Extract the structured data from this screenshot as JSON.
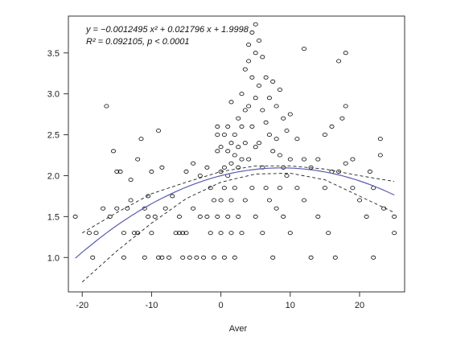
{
  "chart_data": {
    "type": "scatter",
    "title": "",
    "xlabel": "Aver",
    "ylabel": "",
    "xlim": [
      -22,
      26.5
    ],
    "ylim": [
      0.58,
      3.95
    ],
    "xticks": [
      -20,
      -10,
      0,
      10,
      20
    ],
    "yticks": [
      1.0,
      1.5,
      2.0,
      2.5,
      3.0,
      3.5
    ],
    "xtick_labels": [
      "-20",
      "-10",
      "0",
      "10",
      "20"
    ],
    "ytick_labels": [
      "1.0",
      "1.5",
      "2.0",
      "2.5",
      "3.0",
      "3.5"
    ],
    "grid": false,
    "legend": "none",
    "annotations": [
      "y = −0.0012495 x² + 0.021796 x + 1.9998",
      "R² = 0.092105,  p < 0.0001"
    ],
    "fit": {
      "a": -0.0012495,
      "b": 0.021796,
      "c": 1.9998,
      "color": "#5b5bb0"
    },
    "confidence_band": {
      "x": [
        -20,
        -15,
        -10,
        -5,
        0,
        5,
        10,
        15,
        20,
        25
      ],
      "upper": [
        1.3,
        1.55,
        1.78,
        1.92,
        2.05,
        2.12,
        2.12,
        2.08,
        2.0,
        1.93
      ],
      "lower": [
        0.7,
        1.08,
        1.42,
        1.72,
        1.92,
        2.02,
        2.03,
        1.95,
        1.75,
        1.55
      ]
    },
    "series": [
      {
        "marker": "open-circle",
        "color": "#000000",
        "points": [
          [
            -21,
            1.5
          ],
          [
            -19,
            1.3
          ],
          [
            -18.5,
            1.0
          ],
          [
            -18,
            1.3
          ],
          [
            -17,
            1.6
          ],
          [
            -16.5,
            2.85
          ],
          [
            -16,
            1.5
          ],
          [
            -15.5,
            2.3
          ],
          [
            -15,
            1.6
          ],
          [
            -15,
            2.05
          ],
          [
            -14.5,
            2.05
          ],
          [
            -14,
            1.3
          ],
          [
            -14,
            1.0
          ],
          [
            -13.5,
            1.6
          ],
          [
            -13,
            1.95
          ],
          [
            -13,
            1.7
          ],
          [
            -12.5,
            1.3
          ],
          [
            -12,
            2.2
          ],
          [
            -12,
            1.3
          ],
          [
            -11.5,
            2.45
          ],
          [
            -11,
            1.6
          ],
          [
            -11,
            1.0
          ],
          [
            -10.5,
            1.75
          ],
          [
            -10.5,
            1.5
          ],
          [
            -10,
            2.05
          ],
          [
            -10,
            1.3
          ],
          [
            -9.5,
            1.5
          ],
          [
            -9,
            2.55
          ],
          [
            -9,
            1.0
          ],
          [
            -8.5,
            2.1
          ],
          [
            -8.5,
            1.0
          ],
          [
            -8,
            1.6
          ],
          [
            -7.5,
            1.0
          ],
          [
            -7,
            1.75
          ],
          [
            -6.5,
            1.3
          ],
          [
            -6,
            1.3
          ],
          [
            -6,
            1.5
          ],
          [
            -5.5,
            1.3
          ],
          [
            -5.5,
            1.0
          ],
          [
            -5,
            2.05
          ],
          [
            -5,
            1.3
          ],
          [
            -4.5,
            1.0
          ],
          [
            -4,
            1.6
          ],
          [
            -4,
            2.15
          ],
          [
            -3.5,
            1.0
          ],
          [
            -3,
            2.0
          ],
          [
            -3,
            1.5
          ],
          [
            -2.5,
            1.0
          ],
          [
            -2,
            2.1
          ],
          [
            -2,
            1.5
          ],
          [
            -1.5,
            1.3
          ],
          [
            -1.5,
            1.85
          ],
          [
            -1,
            1.7
          ],
          [
            -1,
            1.0
          ],
          [
            -0.5,
            2.5
          ],
          [
            -0.5,
            2.6
          ],
          [
            -0.5,
            2.3
          ],
          [
            -0.5,
            1.5
          ],
          [
            0,
            2.35
          ],
          [
            0,
            2.05
          ],
          [
            0,
            1.7
          ],
          [
            0,
            1.3
          ],
          [
            0.5,
            2.5
          ],
          [
            0.5,
            2.1
          ],
          [
            0.5,
            1.85
          ],
          [
            0.5,
            1.0
          ],
          [
            1,
            2.6
          ],
          [
            1,
            2.3
          ],
          [
            1,
            2.0
          ],
          [
            1,
            1.5
          ],
          [
            1.5,
            2.9
          ],
          [
            1.5,
            2.4
          ],
          [
            1.5,
            2.15
          ],
          [
            1.5,
            1.7
          ],
          [
            1.5,
            1.3
          ],
          [
            2,
            2.5
          ],
          [
            2,
            2.25
          ],
          [
            2,
            1.85
          ],
          [
            2,
            1.0
          ],
          [
            2.5,
            2.7
          ],
          [
            2.5,
            2.35
          ],
          [
            2.5,
            2.1
          ],
          [
            2.5,
            1.5
          ],
          [
            3,
            3.0
          ],
          [
            3,
            2.6
          ],
          [
            3,
            2.2
          ],
          [
            3,
            1.3
          ],
          [
            3.5,
            3.3
          ],
          [
            3.5,
            2.8
          ],
          [
            3.5,
            2.4
          ],
          [
            3.5,
            1.7
          ],
          [
            4,
            3.6
          ],
          [
            4,
            3.4
          ],
          [
            4,
            2.85
          ],
          [
            4,
            2.2
          ],
          [
            4.5,
            3.75
          ],
          [
            4.5,
            3.2
          ],
          [
            4.5,
            2.6
          ],
          [
            4.5,
            1.85
          ],
          [
            5,
            3.85
          ],
          [
            5,
            3.5
          ],
          [
            5,
            2.95
          ],
          [
            5,
            2.35
          ],
          [
            5,
            1.5
          ],
          [
            5.5,
            3.65
          ],
          [
            5.5,
            3.1
          ],
          [
            5.5,
            2.4
          ],
          [
            6,
            3.45
          ],
          [
            6,
            2.8
          ],
          [
            6,
            2.1
          ],
          [
            6,
            1.3
          ],
          [
            6.5,
            3.2
          ],
          [
            6.5,
            2.65
          ],
          [
            6.5,
            1.85
          ],
          [
            7,
            2.95
          ],
          [
            7,
            2.5
          ],
          [
            7,
            1.7
          ],
          [
            7.5,
            3.15
          ],
          [
            7.5,
            2.3
          ],
          [
            7.5,
            1.0
          ],
          [
            8,
            2.85
          ],
          [
            8,
            2.45
          ],
          [
            8,
            1.6
          ],
          [
            8.5,
            3.05
          ],
          [
            8.5,
            2.25
          ],
          [
            8.5,
            1.85
          ],
          [
            9,
            2.7
          ],
          [
            9,
            2.1
          ],
          [
            9,
            1.5
          ],
          [
            9.5,
            2.55
          ],
          [
            9.5,
            2.0
          ],
          [
            10,
            2.75
          ],
          [
            10,
            2.2
          ],
          [
            10,
            1.3
          ],
          [
            11,
            2.45
          ],
          [
            11,
            1.85
          ],
          [
            12,
            3.55
          ],
          [
            12,
            2.2
          ],
          [
            12,
            1.7
          ],
          [
            13,
            2.1
          ],
          [
            13,
            1.0
          ],
          [
            14,
            2.2
          ],
          [
            14,
            1.5
          ],
          [
            15,
            2.5
          ],
          [
            15,
            1.85
          ],
          [
            15.5,
            1.3
          ],
          [
            16,
            2.6
          ],
          [
            16,
            2.05
          ],
          [
            16.5,
            1.0
          ],
          [
            17,
            3.4
          ],
          [
            17,
            2.05
          ],
          [
            17.5,
            2.7
          ],
          [
            18,
            3.5
          ],
          [
            18,
            2.85
          ],
          [
            18,
            2.15
          ],
          [
            19,
            2.2
          ],
          [
            19,
            1.85
          ],
          [
            20,
            1.7
          ],
          [
            21,
            1.5
          ],
          [
            21.5,
            2.05
          ],
          [
            22,
            1.85
          ],
          [
            22,
            1.0
          ],
          [
            23,
            2.25
          ],
          [
            23,
            2.45
          ],
          [
            23.5,
            1.6
          ],
          [
            25,
            1.5
          ],
          [
            25,
            1.3
          ]
        ]
      }
    ]
  }
}
